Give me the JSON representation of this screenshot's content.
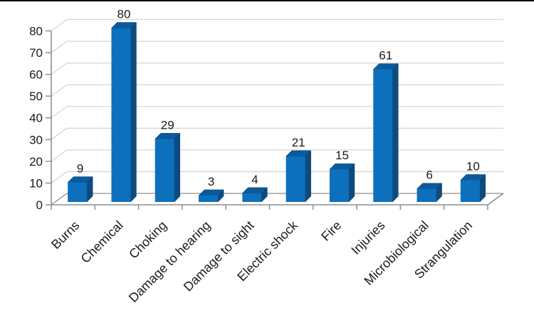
{
  "frame": {
    "background": "#ffffff",
    "top_border_color": "#0a0a0a"
  },
  "chart_data": {
    "type": "bar",
    "style": "3d-column",
    "title": "",
    "xlabel": "",
    "ylabel": "",
    "legend": "none",
    "grid": true,
    "categories": [
      "Burns",
      "Chemical",
      "Choking",
      "Damage to hearing",
      "Damage to sight",
      "Electric shock",
      "Fire",
      "Injuries",
      "Microbiological",
      "Strangulation"
    ],
    "values": [
      9,
      80,
      29,
      3,
      4,
      21,
      15,
      61,
      6,
      10
    ],
    "data_labels": [
      "9",
      "80",
      "29",
      "3",
      "4",
      "21",
      "15",
      "61",
      "6",
      "10"
    ],
    "ylim": [
      0,
      80
    ],
    "ytick_step": 10,
    "ytick_labels": [
      "0",
      "10",
      "20",
      "30",
      "40",
      "50",
      "60",
      "70",
      "80"
    ],
    "colors": {
      "bar_front": "#0c70bd",
      "bar_top": "#0a5a9e",
      "bar_side": "#0d4b7e",
      "bar_edge": "#0a3f6b",
      "gridline": "#d6d6d6",
      "axis": "#8e8e8e",
      "label_text": "#1a1a1a"
    }
  }
}
